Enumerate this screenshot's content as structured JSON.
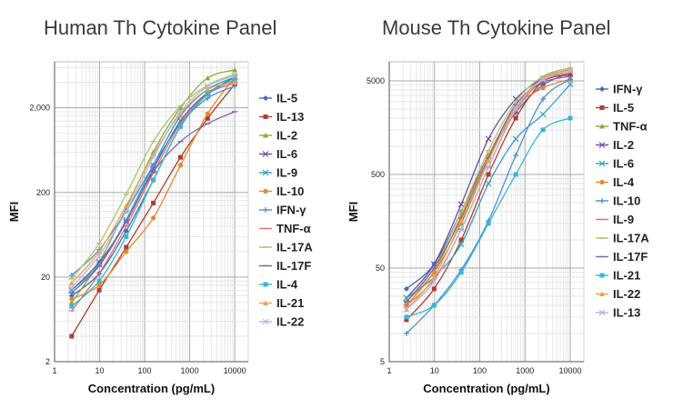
{
  "chart_data": [
    {
      "type": "line",
      "title": "Human Th Cytokine Panel",
      "xlabel": "Concentration (pg/mL)",
      "ylabel": "MFI",
      "x_scale": "log",
      "y_scale": "log",
      "xlim": [
        1,
        20000
      ],
      "ylim": [
        2,
        7000
      ],
      "x_ticks": [
        1,
        10,
        100,
        1000,
        10000
      ],
      "x_tick_labels": [
        "1",
        "10",
        "100",
        "1000",
        "10000"
      ],
      "y_ticks": [
        2,
        20,
        200,
        2000
      ],
      "y_tick_labels": [
        "2",
        "20",
        "200",
        "2,000"
      ],
      "grid": true,
      "legend_position": "right",
      "x": [
        2.4,
        9.8,
        39,
        156,
        625,
        2500,
        10000
      ],
      "series": [
        {
          "name": "IL-5",
          "color": "#3b6fb6",
          "marker": "diamond",
          "values": [
            12,
            22,
            70,
            280,
            1200,
            2900,
            4600
          ]
        },
        {
          "name": "IL-13",
          "color": "#b23b2f",
          "marker": "square",
          "values": [
            4,
            14,
            45,
            150,
            520,
            1500,
            3800
          ]
        },
        {
          "name": "IL-2",
          "color": "#8aa93b",
          "marker": "triangle",
          "values": [
            10,
            30,
            130,
            600,
            2000,
            4500,
            5600
          ]
        },
        {
          "name": "IL-6",
          "color": "#6a4fa0",
          "marker": "x",
          "values": [
            14,
            30,
            90,
            380,
            1400,
            3000,
            4200
          ]
        },
        {
          "name": "IL-9",
          "color": "#2ea0c2",
          "marker": "x",
          "values": [
            14,
            28,
            95,
            420,
            1600,
            3300,
            4600
          ]
        },
        {
          "name": "IL-10",
          "color": "#e8872c",
          "marker": "circle",
          "values": [
            11,
            16,
            40,
            100,
            420,
            1700,
            4600
          ]
        },
        {
          "name": "IFN-γ",
          "color": "#4a90d0",
          "marker": "plus",
          "values": [
            21,
            42,
            120,
            420,
            1300,
            2600,
            3600
          ]
        },
        {
          "name": "TNF-α",
          "color": "#e0716a",
          "marker": "dash",
          "values": [
            8,
            22,
            80,
            340,
            1300,
            2900,
            3900
          ]
        },
        {
          "name": "IL-17A",
          "color": "#a7c66a",
          "marker": "dash",
          "values": [
            19,
            50,
            190,
            800,
            2100,
            3700,
            5000
          ]
        },
        {
          "name": "IL-17F",
          "color": "#8065ad",
          "marker": "dash",
          "values": [
            13,
            27,
            90,
            350,
            800,
            1300,
            1800
          ]
        },
        {
          "name": "IL-4",
          "color": "#35b7d3",
          "marker": "square",
          "values": [
            9,
            18,
            60,
            280,
            1200,
            2900,
            4300
          ]
        },
        {
          "name": "IL-21",
          "color": "#f2a049",
          "marker": "triangle",
          "values": [
            17,
            40,
            140,
            560,
            1700,
            3300,
            4000
          ]
        },
        {
          "name": "IL-22",
          "color": "#b5b5e0",
          "marker": "x",
          "values": [
            15,
            36,
            120,
            520,
            1800,
            3600,
            4800
          ]
        }
      ]
    },
    {
      "type": "line",
      "title": "Mouse Th Cytokine Panel",
      "xlabel": "Concentration (pg/mL)",
      "ylabel": "MFI",
      "x_scale": "log",
      "y_scale": "log",
      "xlim": [
        1,
        20000
      ],
      "ylim": [
        5,
        8000
      ],
      "x_ticks": [
        1,
        10,
        100,
        1000,
        10000
      ],
      "x_tick_labels": [
        "1",
        "10",
        "100",
        "1000",
        "10000"
      ],
      "y_ticks": [
        5,
        50,
        500,
        5000
      ],
      "y_tick_labels": [
        "5",
        "50",
        "500",
        "5000"
      ],
      "grid": true,
      "legend_position": "right",
      "x": [
        2.4,
        9.8,
        39,
        156,
        625,
        2500,
        10000
      ],
      "series": [
        {
          "name": "IFN-γ",
          "color": "#3b6fb6",
          "marker": "diamond",
          "values": [
            30,
            55,
            200,
            800,
            2300,
            4500,
            6100
          ]
        },
        {
          "name": "IL-5",
          "color": "#b23b2f",
          "marker": "square",
          "values": [
            14,
            30,
            100,
            500,
            2000,
            4900,
            5800
          ]
        },
        {
          "name": "TNF-α",
          "color": "#8aa93b",
          "marker": "triangle",
          "values": [
            22,
            45,
            150,
            700,
            2600,
            5400,
            6600
          ]
        },
        {
          "name": "IL-2",
          "color": "#6a4fa0",
          "marker": "x",
          "values": [
            24,
            55,
            240,
            1200,
            3200,
            5300,
            6400
          ]
        },
        {
          "name": "IL-6",
          "color": "#2ea0c2",
          "marker": "x",
          "values": [
            24,
            40,
            90,
            400,
            1200,
            2200,
            4600
          ]
        },
        {
          "name": "IL-4",
          "color": "#e8872c",
          "marker": "circle",
          "values": [
            20,
            46,
            180,
            800,
            2600,
            4200,
            5200
          ]
        },
        {
          "name": "IL-10",
          "color": "#4a90d0",
          "marker": "plus",
          "values": [
            10,
            20,
            48,
            160,
            800,
            3200,
            5200
          ]
        },
        {
          "name": "IL-9",
          "color": "#e0716a",
          "marker": "dash",
          "values": [
            20,
            38,
            130,
            600,
            2400,
            5000,
            6100
          ]
        },
        {
          "name": "IL-17A",
          "color": "#a7c66a",
          "marker": "dash",
          "values": [
            22,
            50,
            200,
            900,
            3000,
            5600,
            6900
          ]
        },
        {
          "name": "IL-17F",
          "color": "#8065ad",
          "marker": "dash",
          "values": [
            22,
            50,
            170,
            750,
            2800,
            4800,
            5600
          ]
        },
        {
          "name": "IL-21",
          "color": "#35b7d3",
          "marker": "square",
          "values": [
            15,
            20,
            45,
            150,
            500,
            1500,
            2000
          ]
        },
        {
          "name": "IL-22",
          "color": "#f2a049",
          "marker": "triangle",
          "values": [
            18,
            40,
            160,
            700,
            2600,
            5300,
            6700
          ]
        },
        {
          "name": "IL-13",
          "color": "#b5b5e0",
          "marker": "x",
          "values": [
            18,
            36,
            130,
            600,
            2500,
            5200,
            6400
          ]
        }
      ]
    }
  ]
}
